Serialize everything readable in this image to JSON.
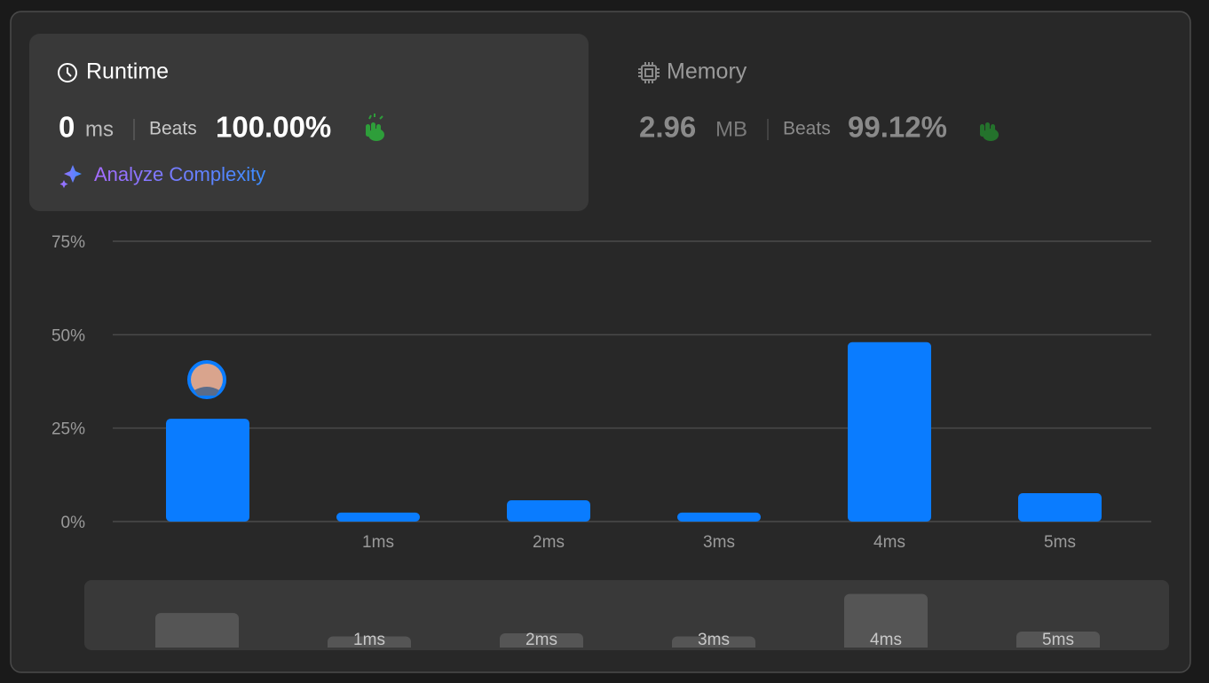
{
  "runtime": {
    "title": "Runtime",
    "value": "0",
    "unit": "ms",
    "beats_label": "Beats",
    "beats": "100.00%",
    "action": "Analyze Complexity"
  },
  "memory": {
    "title": "Memory",
    "value": "2.96",
    "unit": "MB",
    "beats_label": "Beats",
    "beats": "99.12%"
  },
  "chart_data": {
    "type": "bar",
    "categories": [
      null,
      "1ms",
      "2ms",
      "3ms",
      "4ms",
      "5ms"
    ],
    "values": [
      27.5,
      2.4,
      5.7,
      2.4,
      48,
      7.6
    ],
    "color": "#0a7cff",
    "ylim": [
      0,
      75
    ],
    "yticks": [
      {
        "value": 0,
        "label": "0%"
      },
      {
        "value": 25,
        "label": "25%"
      },
      {
        "value": 50,
        "label": "50%"
      },
      {
        "value": 75,
        "label": "75%"
      }
    ],
    "grid": true
  }
}
